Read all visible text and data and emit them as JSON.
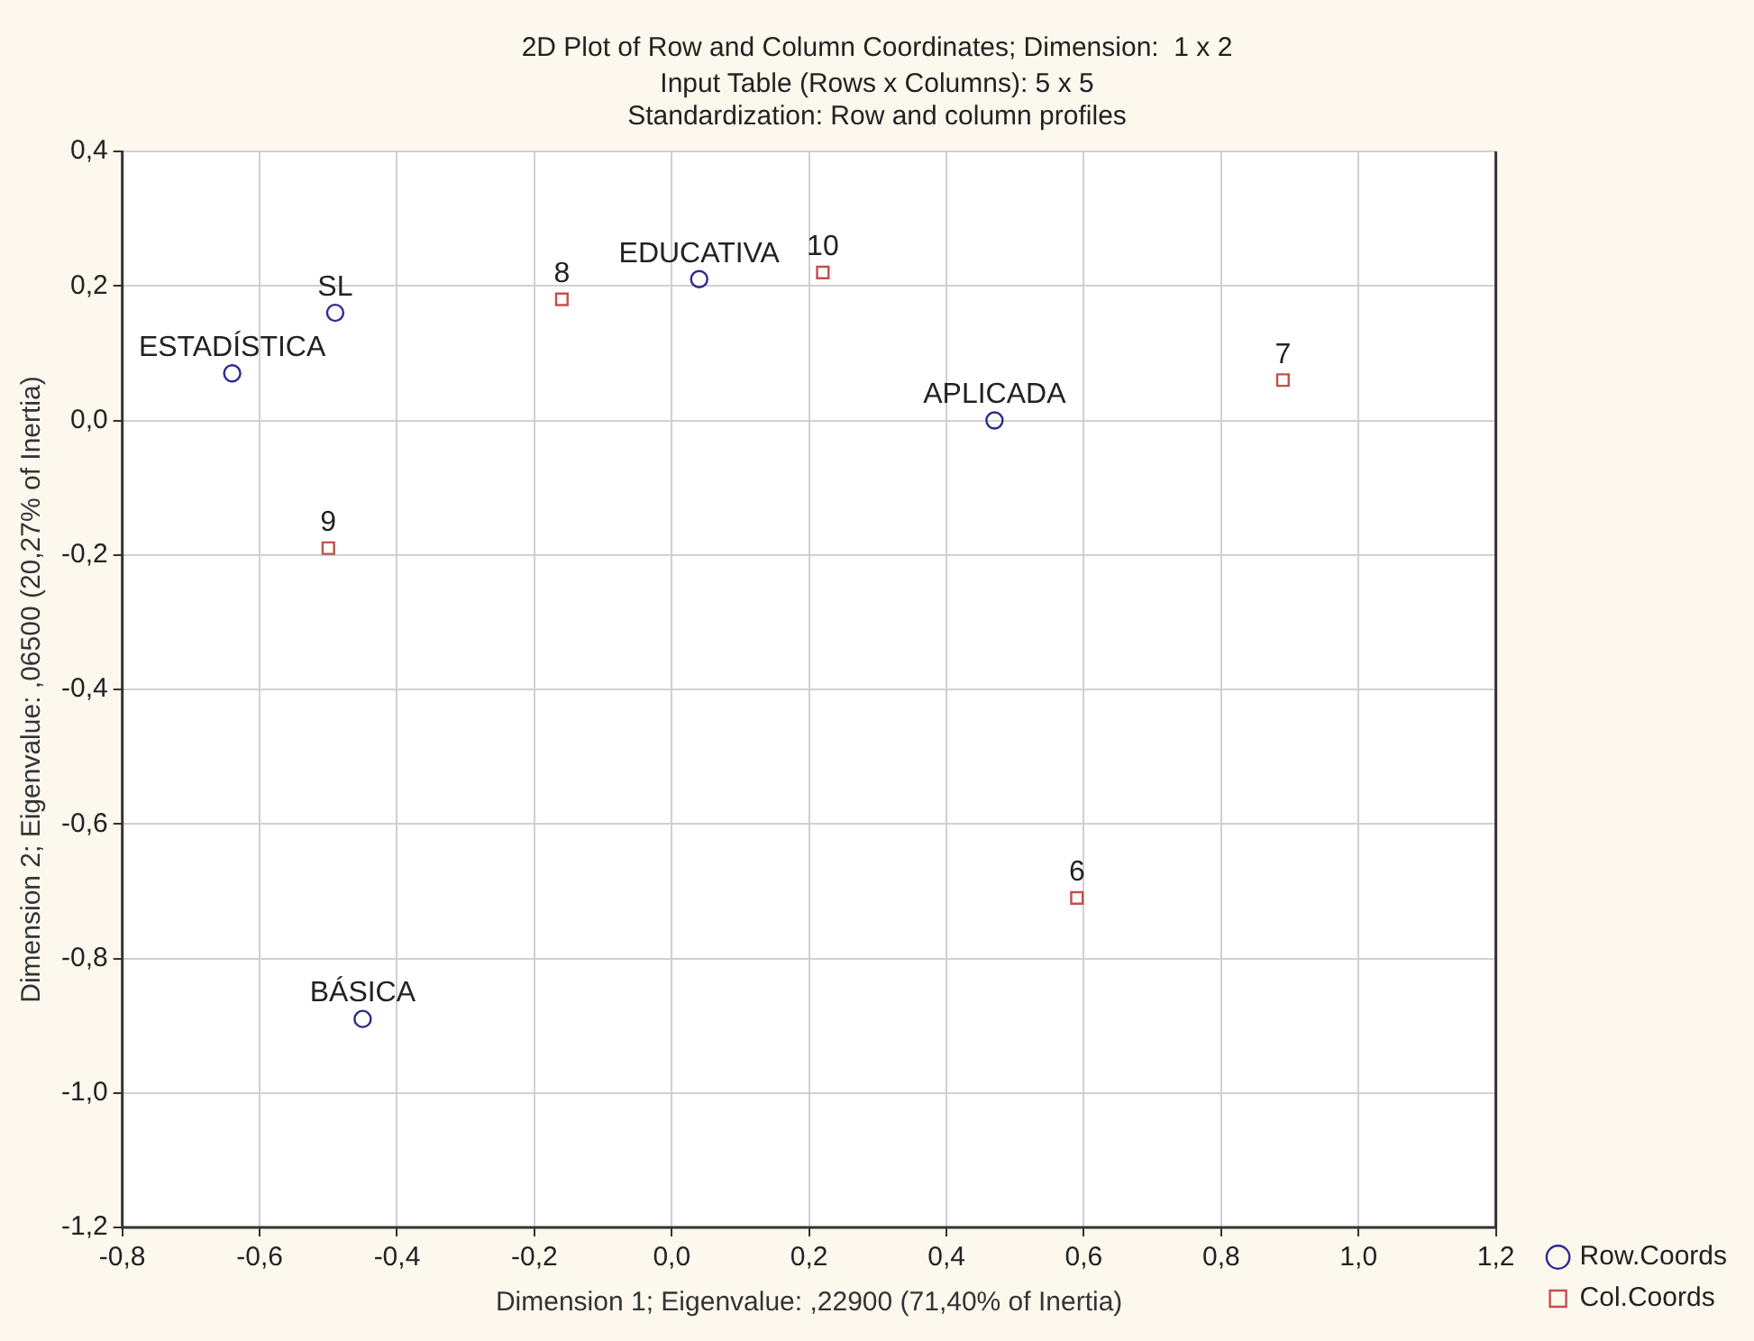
{
  "chart_data": {
    "type": "scatter",
    "title": "2D Plot of Row and Column Coordinates; Dimension:  1 x 2",
    "subtitle": "Input Table (Rows x Columns): 5 x 5\nStandardization: Row and column profiles",
    "xlabel": "Dimension 1; Eigenvalue: ,22900 (71,40% of Inertia)",
    "ylabel": "Dimension 2; Eigenvalue: ,06500 (20,27% of Inertia)",
    "xlim": [
      -0.8,
      1.2
    ],
    "xticks": [
      {
        "value": -0.8,
        "label": "-0,8"
      },
      {
        "value": -0.6,
        "label": "-0,6"
      },
      {
        "value": -0.4,
        "label": "-0,4"
      },
      {
        "value": -0.2,
        "label": "-0,2"
      },
      {
        "value": 0,
        "label": "0,0"
      },
      {
        "value": 0.2,
        "label": "0,2"
      },
      {
        "value": 0.4,
        "label": "0,4"
      },
      {
        "value": 0.6,
        "label": "0,6"
      },
      {
        "value": 0.8,
        "label": "0,8"
      },
      {
        "value": 1.0,
        "label": "1,0"
      },
      {
        "value": 1.2,
        "label": "1,2"
      }
    ],
    "ylim": [
      -1.2,
      0.4
    ],
    "yticks": [
      {
        "value": -1.2,
        "label": "-1,2"
      },
      {
        "value": -1.0,
        "label": "-1,0"
      },
      {
        "value": -0.8,
        "label": "-0,8"
      },
      {
        "value": -0.6,
        "label": "-0,6"
      },
      {
        "value": -0.4,
        "label": "-0,4"
      },
      {
        "value": -0.2,
        "label": "-0,2"
      },
      {
        "value": 0,
        "label": "0,0"
      },
      {
        "value": 0.2,
        "label": "0,2"
      },
      {
        "value": 0.4,
        "label": "0,4"
      }
    ],
    "grid": true,
    "legend": "bottom right",
    "series": [
      {
        "name": "Row.Coords",
        "color": "#2b2b8c",
        "marker": "circle",
        "x": [
          -0.64,
          -0.49,
          0.04,
          0.47,
          -0.45
        ],
        "values": [
          0.07,
          0.16,
          0.21,
          0.0,
          -0.89
        ]
      },
      {
        "name": "Col.Coords",
        "color": "#c0504d",
        "marker": "square",
        "x": [
          0.59,
          0.89,
          -0.16,
          -0.5,
          0.22
        ],
        "values": [
          -0.71,
          0.06,
          0.18,
          -0.19,
          0.22
        ]
      }
    ],
    "annotations": [
      {
        "text": "ESTADÍSTICA",
        "x": -0.64,
        "y": 0.07
      },
      {
        "text": "SL",
        "x": -0.49,
        "y": 0.16
      },
      {
        "text": "EDUCATIVA",
        "x": 0.04,
        "y": 0.21
      },
      {
        "text": "APLICADA",
        "x": 0.47,
        "y": 0.0
      },
      {
        "text": "BÁSICA",
        "x": -0.45,
        "y": -0.89
      },
      {
        "text": "6",
        "x": 0.59,
        "y": -0.71
      },
      {
        "text": "7",
        "x": 0.89,
        "y": 0.06
      },
      {
        "text": "8",
        "x": -0.16,
        "y": 0.18
      },
      {
        "text": "9",
        "x": -0.5,
        "y": -0.19
      },
      {
        "text": "10",
        "x": 0.22,
        "y": 0.22
      }
    ]
  }
}
